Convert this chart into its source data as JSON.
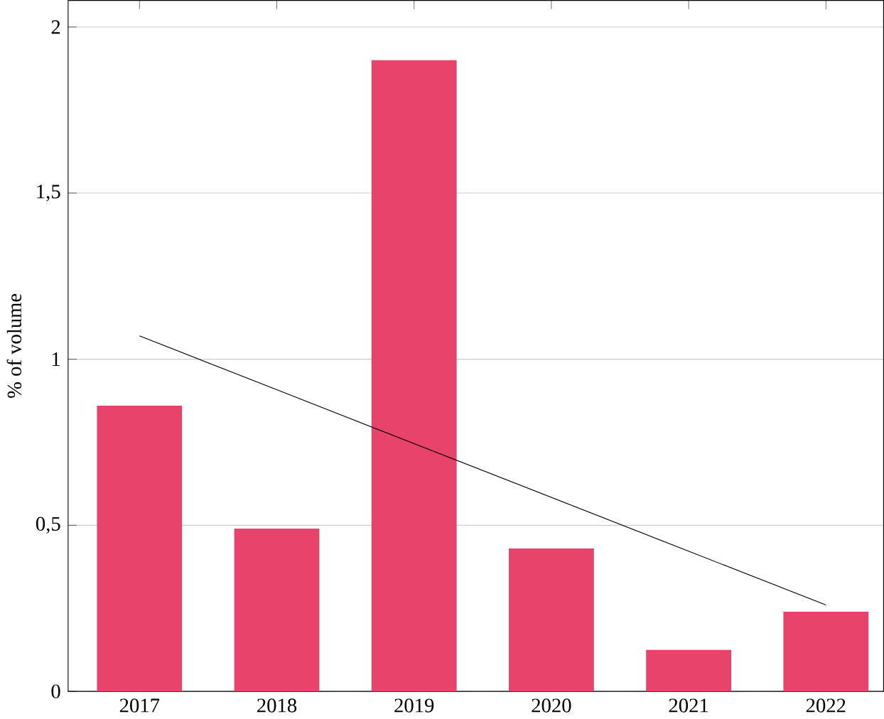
{
  "chart_data": {
    "type": "bar",
    "ylabel": "% of volume",
    "categories": [
      "2017",
      "2018",
      "2019",
      "2020",
      "2021",
      "2022"
    ],
    "series": [
      {
        "color": "#e8436a",
        "values": [
          0.86,
          0.49,
          1.9,
          0.43,
          0.125,
          0.24
        ]
      },
      {
        "type": "line",
        "color": "#000000",
        "values": [
          1.07,
          0.908,
          0.746,
          0.584,
          0.422,
          0.26
        ]
      }
    ],
    "ylim": [
      0,
      2.08
    ],
    "yticks": [
      0,
      {
        "value": 0.5,
        "label": "0,5"
      },
      1,
      {
        "value": 1.5,
        "label": "1,5"
      },
      2
    ],
    "grid": "y",
    "marker": "none"
  }
}
